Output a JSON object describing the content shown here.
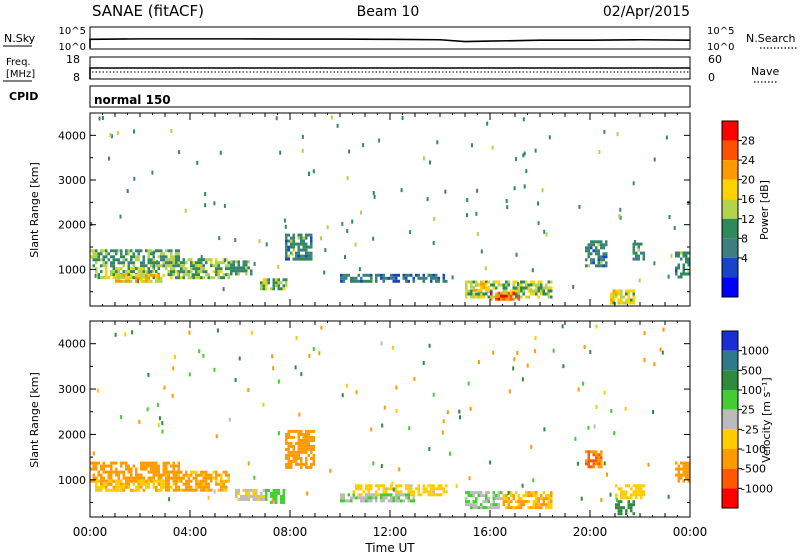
{
  "header": {
    "station": "SANAE (fitACF)",
    "beam": "Beam 10",
    "date": "02/Apr/2015"
  },
  "top_panels": {
    "nsky": {
      "left_label": "N.Sky",
      "right_label": "N.Search",
      "left_ticks": [
        "10^5",
        "10^0"
      ],
      "right_ticks": [
        "10^5",
        "10^0"
      ]
    },
    "freq": {
      "left_label_1": "Freq.",
      "left_label_2": "[MHz]",
      "right_label": "Nave",
      "left_ticks": [
        "18",
        "8"
      ],
      "right_ticks": [
        "60",
        "0"
      ]
    },
    "cpid": {
      "label": "CPID",
      "value": "normal 150"
    }
  },
  "power_colorbar": {
    "label": "Power [dB]",
    "ticks": [
      "28",
      "24",
      "20",
      "16",
      "12",
      "8",
      "4"
    ],
    "colors": [
      "#ff0000",
      "#ff5000",
      "#ff9a00",
      "#ffd200",
      "#b4d24a",
      "#2e8a5a",
      "#3e7f7f",
      "#1a44c8",
      "#0000ff"
    ]
  },
  "velocity_colorbar": {
    "label": "Velocity [m s⁻¹]",
    "ticks": [
      "1000",
      "500",
      "100",
      "25",
      "-25",
      "-100",
      "-500",
      "-1000"
    ],
    "colors": [
      "#1a2ed6",
      "#2e7a8a",
      "#2e8a3c",
      "#44cc33",
      "#bbbbbb",
      "#ffcc00",
      "#ff9a00",
      "#ff5a00",
      "#ff0000"
    ]
  },
  "chart_data": [
    {
      "type": "line",
      "name": "N.Sky",
      "x": [
        0,
        2,
        4,
        6,
        8,
        10,
        12,
        14,
        15,
        16,
        18,
        20,
        22,
        24
      ],
      "y": [
        2.2,
        2.3,
        2.3,
        2.3,
        2.25,
        2.25,
        2.2,
        2.1,
        1.7,
        1.8,
        2.0,
        2.0,
        2.1,
        2.0
      ],
      "xlim": [
        0,
        24
      ]
    },
    {
      "type": "line",
      "name": "Freq.",
      "x": [
        0,
        24
      ],
      "y": [
        12,
        12
      ],
      "xlim": [
        0,
        24
      ]
    },
    {
      "type": "heatmap",
      "title": "Power [dB]",
      "xlabel": "",
      "ylabel": "Slant Range [km]",
      "xlim": [
        0,
        24
      ],
      "ylim": [
        180,
        4500
      ],
      "xticks": [
        "00:00",
        "04:00",
        "08:00",
        "12:00",
        "16:00",
        "20:00",
        "00:00"
      ],
      "yticks": [
        1000,
        2000,
        3000,
        4000
      ],
      "regions": [
        {
          "x": [
            0.0,
            3.6
          ],
          "y": [
            1050,
            1450
          ],
          "value": 10
        },
        {
          "x": [
            0.2,
            2.8
          ],
          "y": [
            800,
            1050
          ],
          "value": 14
        },
        {
          "x": [
            1.0,
            3.0
          ],
          "y": [
            700,
            900
          ],
          "value": 18
        },
        {
          "x": [
            3.0,
            5.6
          ],
          "y": [
            800,
            1250
          ],
          "value": 12
        },
        {
          "x": [
            5.6,
            6.4
          ],
          "y": [
            900,
            1200
          ],
          "value": 9
        },
        {
          "x": [
            6.8,
            7.9
          ],
          "y": [
            550,
            800
          ],
          "value": 13
        },
        {
          "x": [
            7.8,
            8.9
          ],
          "y": [
            1200,
            1800
          ],
          "value": 8
        },
        {
          "x": [
            10.0,
            14.3
          ],
          "y": [
            700,
            900
          ],
          "value": 6
        },
        {
          "x": [
            15.0,
            18.5
          ],
          "y": [
            400,
            750
          ],
          "value": 14
        },
        {
          "x": [
            16.0,
            17.2
          ],
          "y": [
            330,
            500
          ],
          "value": 26
        },
        {
          "x": [
            15.2,
            16.0
          ],
          "y": [
            500,
            700
          ],
          "value": 20
        },
        {
          "x": [
            19.8,
            20.7
          ],
          "y": [
            1100,
            1650
          ],
          "value": 8
        },
        {
          "x": [
            20.8,
            21.8
          ],
          "y": [
            250,
            550
          ],
          "value": 16
        },
        {
          "x": [
            21.7,
            22.2
          ],
          "y": [
            1200,
            1600
          ],
          "value": 9
        },
        {
          "x": [
            23.4,
            24.0
          ],
          "y": [
            800,
            1400
          ],
          "value": 8
        }
      ]
    },
    {
      "type": "heatmap",
      "title": "Velocity [m s⁻¹]",
      "xlabel": "Time UT",
      "ylabel": "Slant Range [km]",
      "xlim": [
        0,
        24
      ],
      "ylim": [
        180,
        4500
      ],
      "xticks": [
        "00:00",
        "04:00",
        "08:00",
        "12:00",
        "16:00",
        "20:00",
        "00:00"
      ],
      "yticks": [
        1000,
        2000,
        3000,
        4000
      ],
      "regions": [
        {
          "x": [
            0.0,
            3.6
          ],
          "y": [
            1000,
            1400
          ],
          "value": -200
        },
        {
          "x": [
            0.2,
            3.0
          ],
          "y": [
            800,
            1000
          ],
          "value": -80
        },
        {
          "x": [
            3.0,
            5.6
          ],
          "y": [
            800,
            1200
          ],
          "value": -150
        },
        {
          "x": [
            5.8,
            7.0
          ],
          "y": [
            550,
            800
          ],
          "value": -20
        },
        {
          "x": [
            7.0,
            7.8
          ],
          "y": [
            500,
            800
          ],
          "value": 60
        },
        {
          "x": [
            7.8,
            9.0
          ],
          "y": [
            1300,
            2100
          ],
          "value": -250
        },
        {
          "x": [
            10.5,
            14.3
          ],
          "y": [
            700,
            900
          ],
          "value": -60
        },
        {
          "x": [
            10.0,
            13.0
          ],
          "y": [
            550,
            700
          ],
          "value": 20
        },
        {
          "x": [
            15.0,
            16.5
          ],
          "y": [
            400,
            750
          ],
          "value": 20
        },
        {
          "x": [
            16.5,
            18.5
          ],
          "y": [
            400,
            750
          ],
          "value": -100
        },
        {
          "x": [
            19.8,
            20.5
          ],
          "y": [
            1300,
            1650
          ],
          "value": -600
        },
        {
          "x": [
            21.0,
            21.8
          ],
          "y": [
            250,
            550
          ],
          "value": 300
        },
        {
          "x": [
            21.0,
            22.2
          ],
          "y": [
            600,
            900
          ],
          "value": -60
        },
        {
          "x": [
            23.4,
            24.0
          ],
          "y": [
            1000,
            1400
          ],
          "value": -200
        }
      ]
    }
  ]
}
